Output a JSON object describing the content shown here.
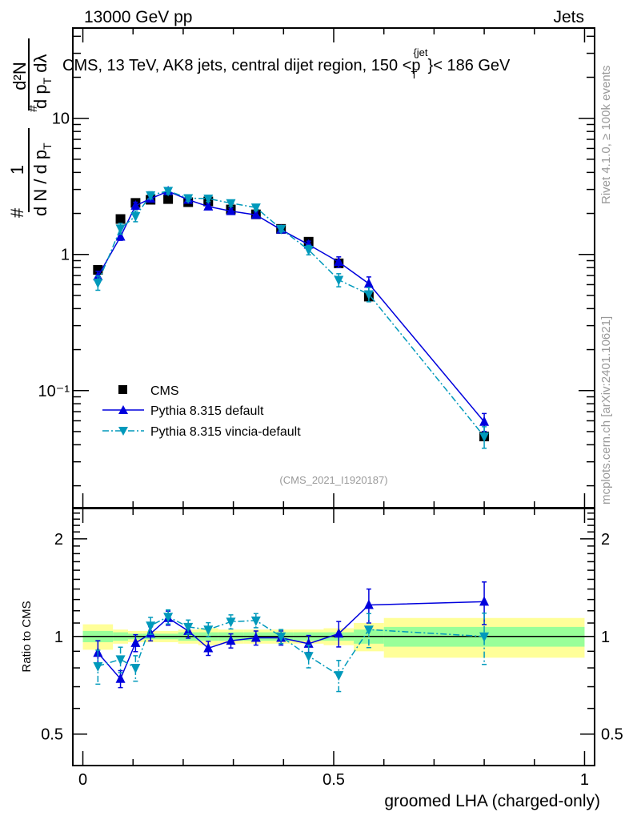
{
  "header": {
    "left": "13000 GeV pp",
    "right": "Jets"
  },
  "side_text": {
    "rivet": "Rivet 4.1.0, ≥ 100k events",
    "mcplots": "mcplots.cern.ch [arXiv:2401.10621]"
  },
  "watermark": "(CMS_2021_I1920187)",
  "chart_data": [
    {
      "type": "scatter",
      "title": "CMS, 13 TeV, AK8 jets, central dijet region, 150 <p",
      "title_sub": "T",
      "title_sup": "{jet",
      "title_tail": "}< 186 GeV",
      "ylabel": {
        "hash1": "#",
        "num1": "1",
        "den1": "d N / d p",
        "den1_sub": "T",
        "hash2": "#",
        "num2": "d²N",
        "den2": "d p",
        "den2_sub": "T",
        "den2_tail": " dλ"
      },
      "yscale": "log",
      "ylim": [
        0.0138,
        46
      ],
      "xlim": [
        -0.02,
        1.02
      ],
      "ytick_labels": [
        "10⁻¹",
        "1",
        "10"
      ],
      "legend_position": "bottom-left",
      "x": [
        0.03,
        0.075,
        0.105,
        0.135,
        0.17,
        0.21,
        0.25,
        0.295,
        0.345,
        0.395,
        0.45,
        0.51,
        0.57,
        0.8
      ],
      "bin_edges": [
        0,
        0.06,
        0.09,
        0.12,
        0.15,
        0.19,
        0.23,
        0.27,
        0.32,
        0.37,
        0.42,
        0.48,
        0.54,
        0.6,
        1.0
      ],
      "series": [
        {
          "name": "CMS",
          "color": "#000000",
          "marker": "square",
          "values": [
            0.77,
            1.82,
            2.39,
            2.52,
            2.55,
            2.42,
            2.45,
            2.14,
            1.97,
            1.54,
            1.24,
            0.86,
            0.49,
            0.046
          ],
          "rel_err": [
            0.02,
            0.02,
            0.02,
            0.02,
            0.02,
            0.02,
            0.02,
            0.02,
            0.02,
            0.02,
            0.02,
            0.02,
            0.03,
            0.04
          ]
        },
        {
          "name": "Pythia 8.315 default",
          "color": "#0000dd",
          "marker": "triangle-up",
          "line": "solid",
          "values": [
            0.69,
            1.35,
            2.28,
            2.57,
            2.91,
            2.52,
            2.25,
            2.08,
            1.95,
            1.52,
            1.18,
            0.88,
            0.61,
            0.059
          ],
          "rel_err": [
            0.09,
            0.06,
            0.06,
            0.05,
            0.05,
            0.05,
            0.05,
            0.05,
            0.05,
            0.05,
            0.06,
            0.09,
            0.12,
            0.15
          ]
        },
        {
          "name": "Pythia 8.315 vincia-default",
          "color": "#0099bb",
          "marker": "triangle-down",
          "line": "dashdot",
          "values": [
            0.62,
            1.55,
            1.91,
            2.72,
            2.93,
            2.59,
            2.57,
            2.38,
            2.21,
            1.54,
            1.08,
            0.65,
            0.51,
            0.046
          ],
          "rel_err": [
            0.12,
            0.09,
            0.09,
            0.06,
            0.05,
            0.05,
            0.05,
            0.05,
            0.05,
            0.05,
            0.08,
            0.11,
            0.12,
            0.18
          ]
        }
      ]
    },
    {
      "type": "scatter",
      "ylabel": "Ratio to CMS",
      "xlabel": "groomed LHA (charged-only)",
      "yscale": "log",
      "ylim": [
        0.4,
        2.48
      ],
      "xlim": [
        -0.02,
        1.02
      ],
      "ytick_values": [
        0.5,
        1,
        2
      ],
      "ytick_labels": [
        "0.5",
        "1",
        "2"
      ],
      "xtick_values": [
        0,
        0.5,
        1
      ],
      "xtick_labels": [
        "0",
        "0.5",
        "1"
      ],
      "band_yellow_color": "#ffff99",
      "band_green_color": "#99ff99",
      "band_yellow": [
        0.09,
        0.05,
        0.04,
        0.04,
        0.04,
        0.05,
        0.06,
        0.05,
        0.05,
        0.05,
        0.05,
        0.06,
        0.1,
        0.14
      ],
      "band_green": [
        0.04,
        0.03,
        0.02,
        0.02,
        0.02,
        0.03,
        0.03,
        0.03,
        0.03,
        0.03,
        0.03,
        0.03,
        0.05,
        0.07
      ],
      "series": [
        {
          "name": "Pythia 8.315 default",
          "values": [
            0.89,
            0.74,
            0.955,
            1.02,
            1.14,
            1.04,
            0.92,
            0.97,
            0.99,
            0.99,
            0.95,
            1.02,
            1.25,
            1.28
          ]
        },
        {
          "name": "Pythia 8.315 vincia-default",
          "values": [
            0.81,
            0.85,
            0.8,
            1.08,
            1.15,
            1.07,
            1.05,
            1.11,
            1.12,
            1.0,
            0.87,
            0.76,
            1.05,
            1.0
          ]
        }
      ]
    }
  ]
}
